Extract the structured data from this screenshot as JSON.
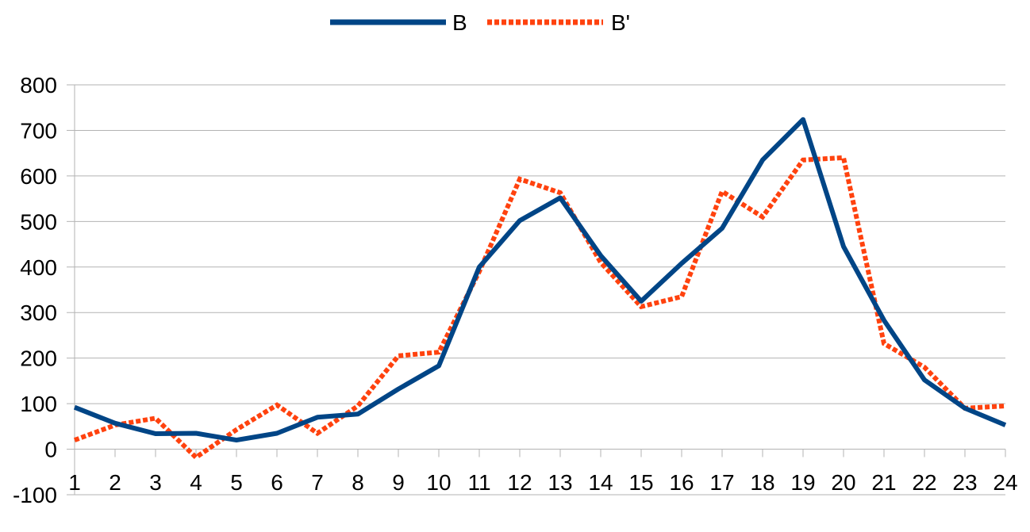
{
  "chart_data": {
    "type": "line",
    "title": "",
    "xlabel": "",
    "ylabel": "",
    "categories": [
      "1",
      "2",
      "3",
      "4",
      "5",
      "6",
      "7",
      "8",
      "9",
      "10",
      "11",
      "12",
      "13",
      "14",
      "15",
      "16",
      "17",
      "18",
      "19",
      "20",
      "21",
      "22",
      "23",
      "24"
    ],
    "ylim": [
      -100,
      800
    ],
    "yticks": [
      -100,
      0,
      100,
      200,
      300,
      400,
      500,
      600,
      700,
      800
    ],
    "grid": true,
    "legend_position": "top-center",
    "series": [
      {
        "name": "B",
        "color": "#004586",
        "style": "solid",
        "values": [
          92,
          57,
          34,
          35,
          20,
          35,
          70,
          77,
          132,
          183,
          400,
          502,
          552,
          425,
          325,
          408,
          485,
          635,
          724,
          445,
          283,
          152,
          90,
          53
        ]
      },
      {
        "name": "B'",
        "color": "#ff420e",
        "style": "dotted",
        "values": [
          20,
          53,
          68,
          -18,
          43,
          97,
          35,
          95,
          205,
          213,
          390,
          593,
          563,
          410,
          313,
          335,
          566,
          510,
          635,
          640,
          232,
          180,
          90,
          95
        ]
      }
    ]
  }
}
